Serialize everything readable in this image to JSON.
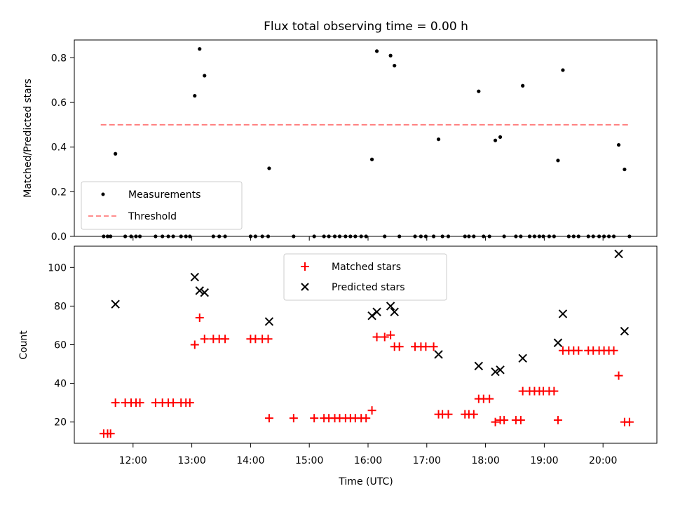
{
  "chart_data": [
    {
      "type": "scatter",
      "title": "Flux total observing time = 0.00 h",
      "xlabel": "",
      "ylabel": "Matched/Predicted stars",
      "ylim": [
        0,
        0.88
      ],
      "yticks": [
        "0.0",
        "0.2",
        "0.4",
        "0.6",
        "0.8"
      ],
      "xlim": [
        "11:00",
        "20:55"
      ],
      "legend": "lower-left",
      "grid": false,
      "series": [
        {
          "name": "Measurements",
          "marker": "dot",
          "color": "#000000",
          "points": [
            [
              "11:30",
              0
            ],
            [
              "11:34",
              0
            ],
            [
              "11:37",
              0
            ],
            [
              "11:42",
              0.37
            ],
            [
              "11:52",
              0
            ],
            [
              "11:58",
              0
            ],
            [
              "12:03",
              0
            ],
            [
              "12:07",
              0
            ],
            [
              "12:23",
              0
            ],
            [
              "12:30",
              0
            ],
            [
              "12:36",
              0
            ],
            [
              "12:41",
              0
            ],
            [
              "12:49",
              0
            ],
            [
              "12:54",
              0
            ],
            [
              "12:58",
              0
            ],
            [
              "13:03",
              0.63
            ],
            [
              "13:08",
              0.84
            ],
            [
              "13:13",
              0.72
            ],
            [
              "13:22",
              0
            ],
            [
              "13:28",
              0
            ],
            [
              "13:34",
              0
            ],
            [
              "14:00",
              0
            ],
            [
              "14:05",
              0
            ],
            [
              "14:12",
              0
            ],
            [
              "14:18",
              0
            ],
            [
              "14:19",
              0.305
            ],
            [
              "14:44",
              0
            ],
            [
              "15:05",
              0
            ],
            [
              "15:15",
              0
            ],
            [
              "15:20",
              0
            ],
            [
              "15:26",
              0
            ],
            [
              "15:31",
              0
            ],
            [
              "15:37",
              0
            ],
            [
              "15:42",
              0
            ],
            [
              "15:47",
              0
            ],
            [
              "15:53",
              0
            ],
            [
              "15:58",
              0
            ],
            [
              "16:04",
              0.345
            ],
            [
              "16:09",
              0.83
            ],
            [
              "16:17",
              0
            ],
            [
              "16:23",
              0.81
            ],
            [
              "16:27",
              0.765
            ],
            [
              "16:32",
              0
            ],
            [
              "16:48",
              0
            ],
            [
              "16:54",
              0
            ],
            [
              "16:59",
              0
            ],
            [
              "17:07",
              0
            ],
            [
              "17:12",
              0.435
            ],
            [
              "17:16",
              0
            ],
            [
              "17:22",
              0
            ],
            [
              "17:39",
              0
            ],
            [
              "17:43",
              0
            ],
            [
              "17:48",
              0
            ],
            [
              "17:53",
              0.65
            ],
            [
              "17:58",
              0
            ],
            [
              "18:04",
              0
            ],
            [
              "18:10",
              0.43
            ],
            [
              "18:15",
              0.445
            ],
            [
              "18:19",
              0
            ],
            [
              "18:31",
              0
            ],
            [
              "18:36",
              0
            ],
            [
              "18:38",
              0.675
            ],
            [
              "18:45",
              0
            ],
            [
              "18:50",
              0
            ],
            [
              "18:55",
              0
            ],
            [
              "18:59",
              0
            ],
            [
              "19:05",
              0
            ],
            [
              "19:10",
              0
            ],
            [
              "19:14",
              0.34
            ],
            [
              "19:19",
              0.745
            ],
            [
              "19:25",
              0
            ],
            [
              "19:30",
              0
            ],
            [
              "19:35",
              0
            ],
            [
              "19:45",
              0
            ],
            [
              "19:50",
              0
            ],
            [
              "19:56",
              0
            ],
            [
              "20:01",
              0
            ],
            [
              "20:06",
              0
            ],
            [
              "20:11",
              0
            ],
            [
              "20:16",
              0.41
            ],
            [
              "20:22",
              0.3
            ],
            [
              "20:27",
              0
            ]
          ]
        },
        {
          "name": "Threshold",
          "line": "dashed",
          "color": "#ff7f7f",
          "points": [
            [
              "11:27",
              0.5
            ],
            [
              "20:27",
              0.5
            ]
          ]
        }
      ]
    },
    {
      "type": "scatter",
      "title": "",
      "xlabel": "Time (UTC)",
      "ylabel": "Count",
      "ylim": [
        9,
        111
      ],
      "yticks": [
        "20",
        "40",
        "60",
        "80",
        "100"
      ],
      "xlim": [
        "11:00",
        "20:55"
      ],
      "xticks": [
        "12:00",
        "13:00",
        "14:00",
        "15:00",
        "16:00",
        "17:00",
        "18:00",
        "19:00",
        "20:00"
      ],
      "legend": "upper-center",
      "grid": false,
      "series": [
        {
          "name": "Matched stars",
          "marker": "plus",
          "color": "#ff0000",
          "points": [
            [
              "11:30",
              14
            ],
            [
              "11:34",
              14
            ],
            [
              "11:37",
              14
            ],
            [
              "11:42",
              30
            ],
            [
              "11:52",
              30
            ],
            [
              "11:58",
              30
            ],
            [
              "12:03",
              30
            ],
            [
              "12:07",
              30
            ],
            [
              "12:23",
              30
            ],
            [
              "12:30",
              30
            ],
            [
              "12:36",
              30
            ],
            [
              "12:41",
              30
            ],
            [
              "12:49",
              30
            ],
            [
              "12:54",
              30
            ],
            [
              "12:58",
              30
            ],
            [
              "13:03",
              60
            ],
            [
              "13:08",
              74
            ],
            [
              "13:13",
              63
            ],
            [
              "13:22",
              63
            ],
            [
              "13:28",
              63
            ],
            [
              "13:34",
              63
            ],
            [
              "14:00",
              63
            ],
            [
              "14:05",
              63
            ],
            [
              "14:12",
              63
            ],
            [
              "14:18",
              63
            ],
            [
              "14:19",
              22
            ],
            [
              "14:44",
              22
            ],
            [
              "15:05",
              22
            ],
            [
              "15:15",
              22
            ],
            [
              "15:20",
              22
            ],
            [
              "15:26",
              22
            ],
            [
              "15:31",
              22
            ],
            [
              "15:37",
              22
            ],
            [
              "15:42",
              22
            ],
            [
              "15:47",
              22
            ],
            [
              "15:53",
              22
            ],
            [
              "15:58",
              22
            ],
            [
              "16:04",
              26
            ],
            [
              "16:09",
              64
            ],
            [
              "16:17",
              64
            ],
            [
              "16:23",
              65
            ],
            [
              "16:27",
              59
            ],
            [
              "16:32",
              59
            ],
            [
              "16:48",
              59
            ],
            [
              "16:54",
              59
            ],
            [
              "16:59",
              59
            ],
            [
              "17:07",
              59
            ],
            [
              "17:12",
              24
            ],
            [
              "17:16",
              24
            ],
            [
              "17:22",
              24
            ],
            [
              "17:39",
              24
            ],
            [
              "17:43",
              24
            ],
            [
              "17:48",
              24
            ],
            [
              "17:53",
              32
            ],
            [
              "17:58",
              32
            ],
            [
              "18:04",
              32
            ],
            [
              "18:10",
              20
            ],
            [
              "18:15",
              21
            ],
            [
              "18:19",
              21
            ],
            [
              "18:31",
              21
            ],
            [
              "18:36",
              21
            ],
            [
              "18:38",
              36
            ],
            [
              "18:45",
              36
            ],
            [
              "18:50",
              36
            ],
            [
              "18:55",
              36
            ],
            [
              "18:59",
              36
            ],
            [
              "19:05",
              36
            ],
            [
              "19:10",
              36
            ],
            [
              "19:14",
              21
            ],
            [
              "19:19",
              57
            ],
            [
              "19:25",
              57
            ],
            [
              "19:30",
              57
            ],
            [
              "19:35",
              57
            ],
            [
              "19:45",
              57
            ],
            [
              "19:50",
              57
            ],
            [
              "19:56",
              57
            ],
            [
              "20:01",
              57
            ],
            [
              "20:06",
              57
            ],
            [
              "20:11",
              57
            ],
            [
              "20:16",
              44
            ],
            [
              "20:22",
              20
            ],
            [
              "20:27",
              20
            ]
          ]
        },
        {
          "name": "Predicted stars",
          "marker": "x",
          "color": "#000000",
          "points": [
            [
              "11:42",
              81
            ],
            [
              "13:03",
              95
            ],
            [
              "13:08",
              88
            ],
            [
              "13:13",
              87
            ],
            [
              "14:19",
              72
            ],
            [
              "16:04",
              75
            ],
            [
              "16:09",
              77
            ],
            [
              "16:23",
              80
            ],
            [
              "16:27",
              77
            ],
            [
              "17:12",
              55
            ],
            [
              "17:53",
              49
            ],
            [
              "18:10",
              46
            ],
            [
              "18:15",
              47
            ],
            [
              "18:38",
              53
            ],
            [
              "19:14",
              61
            ],
            [
              "19:19",
              76
            ],
            [
              "20:16",
              107
            ],
            [
              "20:22",
              67
            ]
          ]
        }
      ]
    }
  ]
}
